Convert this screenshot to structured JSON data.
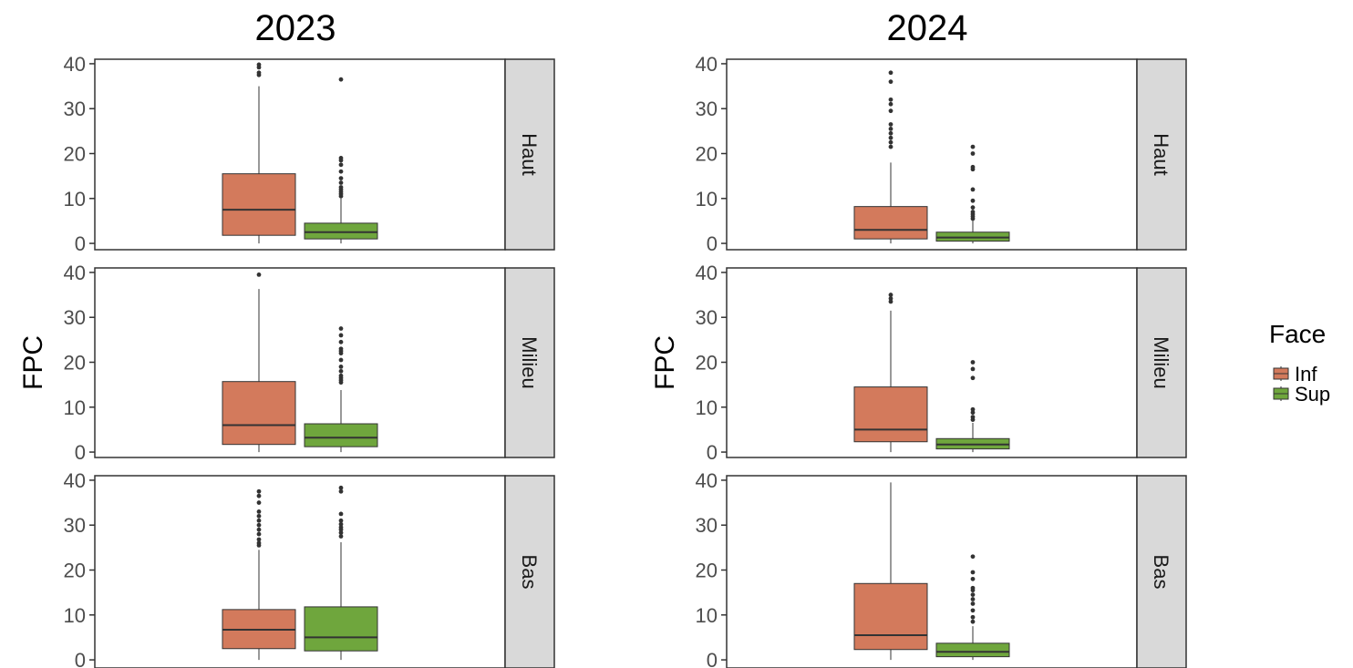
{
  "chart_data": [
    {
      "type": "box",
      "title": "2023",
      "ylabel": "FPC",
      "ylim": [
        -1,
        41
      ],
      "yticks": [
        "0",
        "10",
        "20",
        "30",
        "40"
      ],
      "groups": [
        "Inf",
        "Sup"
      ],
      "facets": [
        {
          "name": "Haut",
          "boxes": [
            {
              "group": "Inf",
              "whisker_low": 0,
              "q1": 1.8,
              "median": 7.5,
              "q3": 15.5,
              "whisker_high": 35,
              "outliers": [
                37.5,
                38,
                39.2,
                39.8
              ]
            },
            {
              "group": "Sup",
              "whisker_low": 0,
              "q1": 1,
              "median": 2.5,
              "q3": 4.5,
              "whisker_high": 10,
              "outliers": [
                10.5,
                11,
                11.5,
                12,
                12.5,
                13.5,
                14.5,
                16,
                17.5,
                18.5,
                19,
                36.5
              ]
            }
          ]
        },
        {
          "name": "Milieu",
          "boxes": [
            {
              "group": "Inf",
              "whisker_low": 0,
              "q1": 1.7,
              "median": 6,
              "q3": 15.7,
              "whisker_high": 36.3,
              "outliers": [
                39.5
              ]
            },
            {
              "group": "Sup",
              "whisker_low": 0,
              "q1": 1.2,
              "median": 3.2,
              "q3": 6.3,
              "whisker_high": 13.8,
              "outliers": [
                15.5,
                16,
                16.5,
                17,
                18,
                19,
                20.5,
                22,
                22.5,
                23,
                24.5,
                26,
                27.5
              ]
            }
          ]
        },
        {
          "name": "Bas",
          "boxes": [
            {
              "group": "Inf",
              "whisker_low": 0,
              "q1": 2.5,
              "median": 6.7,
              "q3": 11.2,
              "whisker_high": 24.5,
              "outliers": [
                25.5,
                26,
                26.8,
                28,
                29,
                30,
                31,
                32,
                33,
                35,
                36.5,
                37.5
              ]
            },
            {
              "group": "Sup",
              "whisker_low": 0,
              "q1": 2,
              "median": 5,
              "q3": 11.8,
              "whisker_high": 26.2,
              "outliers": [
                27.5,
                28.3,
                29,
                29.5,
                30.2,
                31,
                32.5,
                37.5,
                38.3
              ]
            }
          ]
        }
      ]
    },
    {
      "type": "box",
      "title": "2024",
      "ylabel": "FPC",
      "ylim": [
        -1,
        41
      ],
      "yticks": [
        "0",
        "10",
        "20",
        "30",
        "40"
      ],
      "groups": [
        "Inf",
        "Sup"
      ],
      "facets": [
        {
          "name": "Haut",
          "boxes": [
            {
              "group": "Inf",
              "whisker_low": 0,
              "q1": 1,
              "median": 3,
              "q3": 8.2,
              "whisker_high": 18,
              "outliers": [
                21.5,
                22.5,
                23.5,
                24.5,
                25.5,
                26.5,
                29.5,
                31,
                32,
                36,
                38
              ]
            },
            {
              "group": "Sup",
              "whisker_low": 0,
              "q1": 0.5,
              "median": 1.3,
              "q3": 2.5,
              "whisker_high": 5.2,
              "outliers": [
                5.5,
                6,
                6.5,
                7,
                8,
                9.5,
                12,
                16.5,
                17,
                20,
                21.5
              ]
            }
          ]
        },
        {
          "name": "Milieu",
          "boxes": [
            {
              "group": "Inf",
              "whisker_low": 0,
              "q1": 2.3,
              "median": 5,
              "q3": 14.5,
              "whisker_high": 31.5,
              "outliers": [
                33.5,
                34.2,
                35
              ]
            },
            {
              "group": "Sup",
              "whisker_low": 0,
              "q1": 0.7,
              "median": 1.7,
              "q3": 3,
              "whisker_high": 6.5,
              "outliers": [
                7.2,
                7.8,
                8.8,
                9.5,
                16.5,
                18.5,
                20
              ]
            }
          ]
        },
        {
          "name": "Bas",
          "boxes": [
            {
              "group": "Inf",
              "whisker_low": 0,
              "q1": 2.3,
              "median": 5.5,
              "q3": 17,
              "whisker_high": 39.5,
              "outliers": []
            },
            {
              "group": "Sup",
              "whisker_low": 0,
              "q1": 0.7,
              "median": 1.8,
              "q3": 3.7,
              "whisker_high": 7.5,
              "outliers": [
                8.5,
                9.5,
                11,
                12.5,
                13.5,
                14.5,
                15.5,
                16,
                18,
                19.5,
                23
              ]
            }
          ]
        }
      ]
    }
  ],
  "legend": {
    "title": "Face",
    "placement": "right",
    "items": [
      {
        "label": "Inf",
        "color": "#d37a5c"
      },
      {
        "label": "Sup",
        "color": "#6fa63d"
      }
    ]
  },
  "colors": {
    "Inf": "#d37a5c",
    "Sup": "#6fa63d",
    "strip": "#d9d9d9",
    "panel_border": "#333333",
    "outlier": "#333333"
  }
}
